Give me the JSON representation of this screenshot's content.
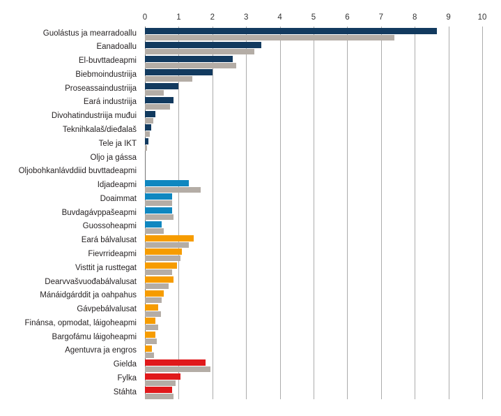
{
  "chart_data": {
    "type": "bar",
    "orientation": "horizontal",
    "title": "",
    "xlabel": "",
    "ylabel": "",
    "xlim": [
      0,
      10
    ],
    "x_ticks": [
      "0",
      "1",
      "2",
      "3",
      "4",
      "5",
      "6",
      "7",
      "8",
      "9",
      "10"
    ],
    "grid": "vertical",
    "legend_position": "none",
    "series_names": [
      "value",
      "comparison"
    ],
    "rows": [
      {
        "label": "Guolástus ja mearradoallu",
        "group": "navy",
        "value": 8.65,
        "compare": 7.4
      },
      {
        "label": "Eanadoallu",
        "group": "navy",
        "value": 3.45,
        "compare": 3.25
      },
      {
        "label": "El-buvttadeapmi",
        "group": "navy",
        "value": 2.6,
        "compare": 2.7
      },
      {
        "label": "Biebmoindustriija",
        "group": "navy",
        "value": 2.0,
        "compare": 1.4
      },
      {
        "label": "Proseassaindustriija",
        "group": "navy",
        "value": 1.0,
        "compare": 0.55
      },
      {
        "label": "Eará industriija",
        "group": "navy",
        "value": 0.85,
        "compare": 0.75
      },
      {
        "label": "Divohatindustriija muđui",
        "group": "navy",
        "value": 0.3,
        "compare": 0.25
      },
      {
        "label": "Teknihkalaš/dieđalaš",
        "group": "navy",
        "value": 0.18,
        "compare": 0.15
      },
      {
        "label": "Tele ja IKT",
        "group": "navy",
        "value": 0.1,
        "compare": 0.06
      },
      {
        "label": "Oljo ja gássa",
        "group": "navy",
        "value": 0,
        "compare": 0
      },
      {
        "label": "Oljobohkanlávddiid buvttadeapmi",
        "group": "navy",
        "value": 0,
        "compare": 0
      },
      {
        "label": "Idjadeapmi",
        "group": "blue",
        "value": 1.3,
        "compare": 1.65
      },
      {
        "label": "Doaimmat",
        "group": "blue",
        "value": 0.8,
        "compare": 0.8
      },
      {
        "label": "Buvdagávppašeapmi",
        "group": "blue",
        "value": 0.8,
        "compare": 0.85
      },
      {
        "label": "Guossoheapmi",
        "group": "blue",
        "value": 0.5,
        "compare": 0.55
      },
      {
        "label": "Eará bálvalusat",
        "group": "orange",
        "value": 1.45,
        "compare": 1.3
      },
      {
        "label": "Fievrrideapmi",
        "group": "orange",
        "value": 1.1,
        "compare": 1.05
      },
      {
        "label": "Visttit ja rusttegat",
        "group": "orange",
        "value": 0.95,
        "compare": 0.8
      },
      {
        "label": "Dearvvašvuođabálvalusat",
        "group": "orange",
        "value": 0.85,
        "compare": 0.7
      },
      {
        "label": "Mánáidgárddit ja oahpahus",
        "group": "orange",
        "value": 0.55,
        "compare": 0.5
      },
      {
        "label": "Gávpebálvalusat",
        "group": "orange",
        "value": 0.4,
        "compare": 0.47
      },
      {
        "label": "Finánsa, opmodat, láigoheapmi",
        "group": "orange",
        "value": 0.3,
        "compare": 0.4
      },
      {
        "label": "Bargofámu láigoheapmi",
        "group": "orange",
        "value": 0.3,
        "compare": 0.35
      },
      {
        "label": "Agentuvra ja engros",
        "group": "orange",
        "value": 0.2,
        "compare": 0.27
      },
      {
        "label": "Gielda",
        "group": "red",
        "value": 1.8,
        "compare": 1.95
      },
      {
        "label": "Fylka",
        "group": "red",
        "value": 1.05,
        "compare": 0.9
      },
      {
        "label": "Stáhta",
        "group": "red",
        "value": 0.8,
        "compare": 0.85
      }
    ],
    "colors": {
      "navy": "#123a5f",
      "blue": "#0f87c0",
      "orange": "#f69c00",
      "red": "#e0191b",
      "compare": "#b4ada6"
    }
  }
}
